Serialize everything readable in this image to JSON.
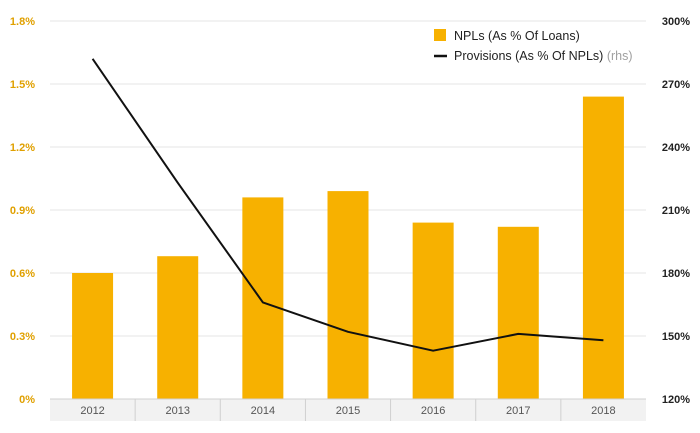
{
  "colors": {
    "bar": "#f7b100",
    "line": "#111111",
    "left_axis_text": "#e0a000",
    "grid": "#e6e6e6",
    "axis_band": "#f2f2f2"
  },
  "chart_data": {
    "type": "bar",
    "categories": [
      "2012",
      "2013",
      "2014",
      "2015",
      "2016",
      "2017",
      "2018"
    ],
    "series": [
      {
        "name": "NPLs (As % Of Loans)",
        "type": "bar",
        "axis": "left",
        "values": [
          0.6,
          0.68,
          0.96,
          0.99,
          0.84,
          0.82,
          1.44
        ]
      },
      {
        "name": "Provisions (As % Of NPLs)",
        "type": "line",
        "axis": "right",
        "values": [
          282,
          223,
          166,
          152,
          143,
          151,
          148
        ]
      }
    ],
    "left_axis": {
      "ylim": [
        0,
        1.8
      ],
      "ticks": [
        0,
        0.3,
        0.6,
        0.9,
        1.2,
        1.5,
        1.8
      ],
      "tick_labels": [
        "0%",
        "0.3%",
        "0.6%",
        "0.9%",
        "1.2%",
        "1.5%",
        "1.8%"
      ]
    },
    "right_axis": {
      "ylim": [
        120,
        300
      ],
      "ticks": [
        120,
        150,
        180,
        210,
        240,
        270,
        300
      ],
      "tick_labels": [
        "120%",
        "150%",
        "180%",
        "210%",
        "240%",
        "270%",
        "300%"
      ]
    },
    "legend": {
      "position": "top-right",
      "items": [
        {
          "label": "NPLs (As % Of Loans)",
          "suffix": "",
          "marker": "square"
        },
        {
          "label": "Provisions (As % Of NPLs)",
          "suffix": " (rhs)",
          "marker": "line"
        }
      ]
    },
    "grid": true
  }
}
